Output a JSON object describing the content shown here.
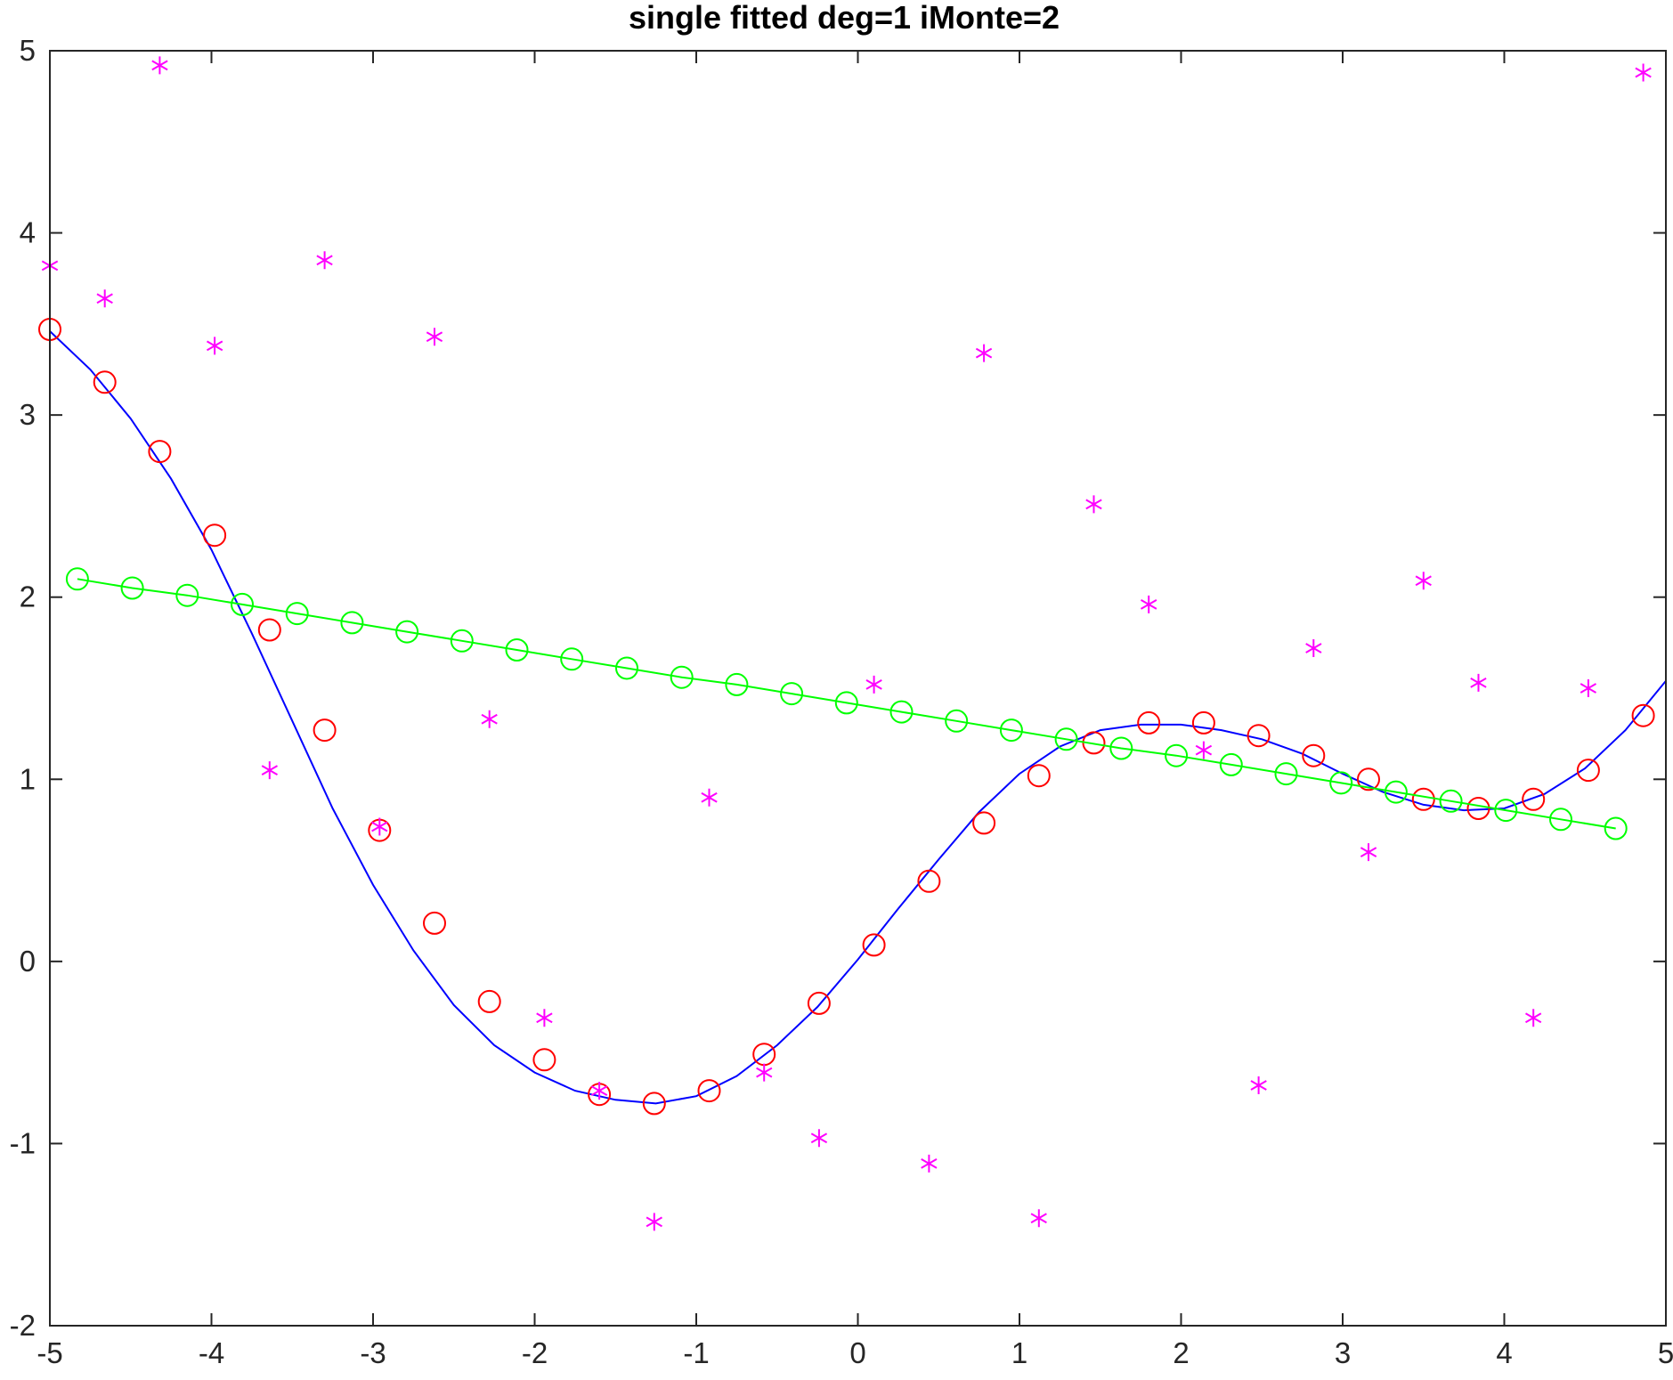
{
  "chart_data": {
    "type": "line",
    "title": "single fitted deg=1 iMonte=2",
    "xlabel": "",
    "ylabel": "",
    "xlim": [
      -5,
      5
    ],
    "ylim": [
      -2,
      5
    ],
    "xticks": [
      "-5",
      "-4",
      "-3",
      "-2",
      "-1",
      "0",
      "1",
      "2",
      "3",
      "4",
      "5"
    ],
    "yticks": [
      "-2",
      "-1",
      "0",
      "1",
      "2",
      "3",
      "4",
      "5"
    ],
    "grid": false,
    "box": true,
    "colors": {
      "true_curve": "#0000ff",
      "true_samples": "#ff0000",
      "noisy_samples": "#ff00ff",
      "fitted_line": "#00ff00",
      "axes": "#262626"
    },
    "series": [
      {
        "style": "line",
        "color": "#0000ff",
        "x": [
          -5.0,
          -4.75,
          -4.5,
          -4.25,
          -4.0,
          -3.75,
          -3.5,
          -3.25,
          -3.0,
          -2.75,
          -2.5,
          -2.25,
          -2.0,
          -1.75,
          -1.5,
          -1.25,
          -1.0,
          -0.75,
          -0.5,
          -0.25,
          0.0,
          0.25,
          0.5,
          0.75,
          1.0,
          1.25,
          1.5,
          1.75,
          2.0,
          2.25,
          2.5,
          2.75,
          3.0,
          3.25,
          3.5,
          3.75,
          4.0,
          4.25,
          4.5,
          4.75,
          5.0
        ],
        "y": [
          3.46,
          3.25,
          2.98,
          2.65,
          2.26,
          1.8,
          1.32,
          0.84,
          0.42,
          0.06,
          -0.24,
          -0.46,
          -0.61,
          -0.71,
          -0.76,
          -0.78,
          -0.74,
          -0.63,
          -0.46,
          -0.25,
          0.01,
          0.29,
          0.56,
          0.82,
          1.03,
          1.18,
          1.27,
          1.3,
          1.3,
          1.27,
          1.22,
          1.14,
          1.03,
          0.93,
          0.86,
          0.83,
          0.84,
          0.92,
          1.06,
          1.27,
          1.54
        ]
      },
      {
        "style": "circle",
        "color": "#ff0000",
        "x": [
          -5.0,
          -4.66,
          -4.32,
          -3.98,
          -3.64,
          -3.3,
          -2.96,
          -2.62,
          -2.28,
          -1.94,
          -1.6,
          -1.26,
          -0.92,
          -0.58,
          -0.24,
          0.1,
          0.44,
          0.78,
          1.12,
          1.46,
          1.8,
          2.14,
          2.48,
          2.82,
          3.16,
          3.5,
          3.84,
          4.18,
          4.52,
          4.86
        ],
        "y": [
          3.47,
          3.18,
          2.8,
          2.34,
          1.82,
          1.27,
          0.72,
          0.21,
          -0.22,
          -0.54,
          -0.73,
          -0.78,
          -0.71,
          -0.51,
          -0.23,
          0.09,
          0.44,
          0.76,
          1.02,
          1.2,
          1.31,
          1.31,
          1.24,
          1.13,
          1.0,
          0.89,
          0.84,
          0.89,
          1.05,
          1.35
        ]
      },
      {
        "style": "asterisk",
        "color": "#ff00ff",
        "x": [
          -5.0,
          -4.66,
          -4.32,
          -3.98,
          -3.64,
          -3.3,
          -2.96,
          -2.62,
          -2.28,
          -1.94,
          -1.6,
          -1.26,
          -0.92,
          -0.58,
          -0.24,
          0.1,
          0.44,
          0.78,
          1.12,
          1.46,
          1.8,
          2.14,
          2.48,
          2.82,
          3.16,
          3.5,
          3.84,
          4.18,
          4.52,
          4.86
        ],
        "y": [
          3.82,
          3.64,
          4.92,
          3.38,
          1.05,
          3.85,
          0.74,
          3.43,
          1.33,
          -0.31,
          -0.71,
          -1.43,
          0.9,
          -0.61,
          -0.97,
          1.52,
          -1.11,
          3.34,
          -1.41,
          2.51,
          1.96,
          1.16,
          -0.68,
          1.72,
          0.6,
          2.09,
          1.53,
          -0.31,
          1.5,
          4.88
        ]
      },
      {
        "style": "line+circle",
        "color": "#00ff00",
        "x": [
          -4.83,
          -4.49,
          -4.15,
          -3.81,
          -3.47,
          -3.13,
          -2.79,
          -2.45,
          -2.11,
          -1.77,
          -1.43,
          -1.09,
          -0.75,
          -0.41,
          -0.07,
          0.27,
          0.61,
          0.95,
          1.29,
          1.63,
          1.97,
          2.31,
          2.65,
          2.99,
          3.33,
          3.67,
          4.01,
          4.35,
          4.69
        ],
        "y": [
          2.1,
          2.05,
          2.01,
          1.96,
          1.91,
          1.86,
          1.81,
          1.76,
          1.71,
          1.66,
          1.61,
          1.56,
          1.52,
          1.47,
          1.42,
          1.37,
          1.32,
          1.27,
          1.22,
          1.17,
          1.13,
          1.08,
          1.03,
          0.98,
          0.93,
          0.88,
          0.83,
          0.78,
          0.73
        ]
      }
    ]
  }
}
